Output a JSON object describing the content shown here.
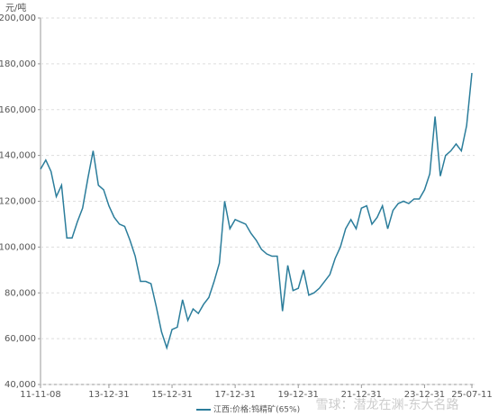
{
  "chart_data": {
    "type": "line",
    "y_label": "元/吨",
    "categories": [
      "11-11-08",
      null,
      null,
      null,
      null,
      null,
      null,
      null,
      null,
      null,
      null,
      null,
      null,
      "13-12-31",
      null,
      null,
      null,
      null,
      null,
      null,
      null,
      null,
      null,
      null,
      null,
      "15-12-31",
      null,
      null,
      null,
      null,
      null,
      null,
      null,
      null,
      null,
      null,
      null,
      "17-12-31",
      null,
      null,
      null,
      null,
      null,
      null,
      null,
      null,
      null,
      null,
      null,
      "19-12-31",
      null,
      null,
      null,
      null,
      null,
      null,
      null,
      null,
      null,
      null,
      null,
      "21-12-31",
      null,
      null,
      null,
      null,
      null,
      null,
      null,
      null,
      null,
      null,
      null,
      "23-12-31",
      null,
      null,
      null,
      null,
      null,
      null,
      null,
      null,
      "25-07-11"
    ],
    "series": [
      {
        "name": "江西:价格:钨精矿(65%)",
        "color": "#2b7d9b",
        "values": [
          134000,
          138000,
          133000,
          122000,
          127000,
          104000,
          104000,
          111000,
          117000,
          130000,
          142000,
          127000,
          125000,
          118000,
          113000,
          110000,
          109000,
          103000,
          96000,
          85000,
          85000,
          84000,
          74000,
          63000,
          56000,
          64000,
          65000,
          77000,
          68000,
          73000,
          71000,
          75000,
          78000,
          85000,
          93000,
          120000,
          108000,
          112000,
          111000,
          110000,
          106000,
          103000,
          99000,
          97000,
          96000,
          96000,
          72000,
          92000,
          81000,
          82000,
          90000,
          79000,
          80000,
          82000,
          85000,
          88000,
          95000,
          100000,
          108000,
          112000,
          108000,
          117000,
          118000,
          110000,
          113000,
          118000,
          108000,
          116000,
          119000,
          120000,
          119000,
          121000,
          121000,
          125000,
          132000,
          157000,
          131000,
          140000,
          142000,
          145000,
          142000,
          153000,
          176000
        ]
      }
    ],
    "ylim": [
      40000,
      200000
    ],
    "yticks": [
      {
        "value": 40000,
        "label": "40,000"
      },
      {
        "value": 60000,
        "label": "60,000"
      },
      {
        "value": 80000,
        "label": "80,000"
      },
      {
        "value": 100000,
        "label": "100,000"
      },
      {
        "value": 120000,
        "label": "120,000"
      },
      {
        "value": 140000,
        "label": "140,000"
      },
      {
        "value": 160000,
        "label": "160,000"
      },
      {
        "value": 180000,
        "label": "180,000"
      },
      {
        "value": 200000,
        "label": "200,000"
      }
    ],
    "grid": true,
    "legend": "bottom",
    "watermark": "雪球：潜龙在渊-东大名路"
  }
}
